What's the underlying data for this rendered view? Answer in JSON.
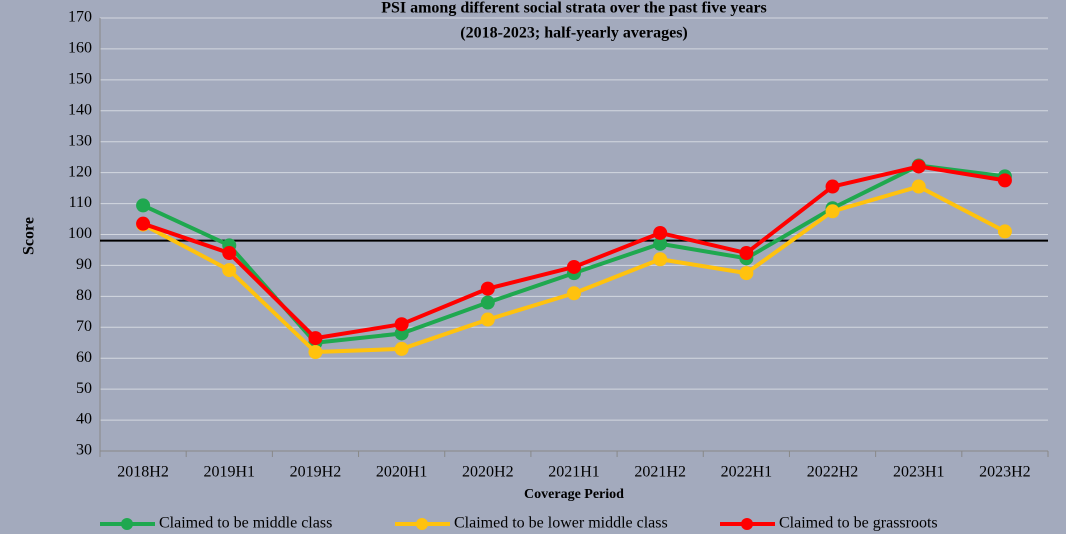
{
  "chart_data": {
    "type": "line",
    "title": "PSI among different social strata over the past five years",
    "subtitle": "(2018-2023; half-yearly averages)",
    "x_label": "Coverage Period",
    "y_label": "Score",
    "categories": [
      "2018H2",
      "2019H1",
      "2019H2",
      "2020H1",
      "2020H2",
      "2021H1",
      "2021H2",
      "2022H1",
      "2022H2",
      "2023H1",
      "2023H2"
    ],
    "series": [
      {
        "name": "Claimed to be middle class",
        "color": "#1fa84f",
        "values": [
          109.4,
          96.5,
          65,
          68,
          78,
          87.5,
          97,
          92.3,
          108.5,
          122.3,
          118.8
        ]
      },
      {
        "name": "Claimed to be lower middle class",
        "color": "#ffc20e",
        "values": [
          103.2,
          88.5,
          62,
          63,
          72.5,
          81,
          92,
          87.5,
          107.5,
          115.5,
          101
        ]
      },
      {
        "name": "Claimed to be grassroots",
        "color": "#ff0000",
        "values": [
          103.5,
          94,
          66.5,
          71,
          82.5,
          89.5,
          100.5,
          94,
          115.5,
          122,
          117.5
        ]
      }
    ],
    "reference_line": 98,
    "ylim": [
      30,
      170
    ],
    "yticks": [
      30,
      40,
      50,
      60,
      70,
      80,
      90,
      100,
      110,
      120,
      130,
      140,
      150,
      160,
      170
    ],
    "grid": true,
    "legend": "bottom"
  }
}
